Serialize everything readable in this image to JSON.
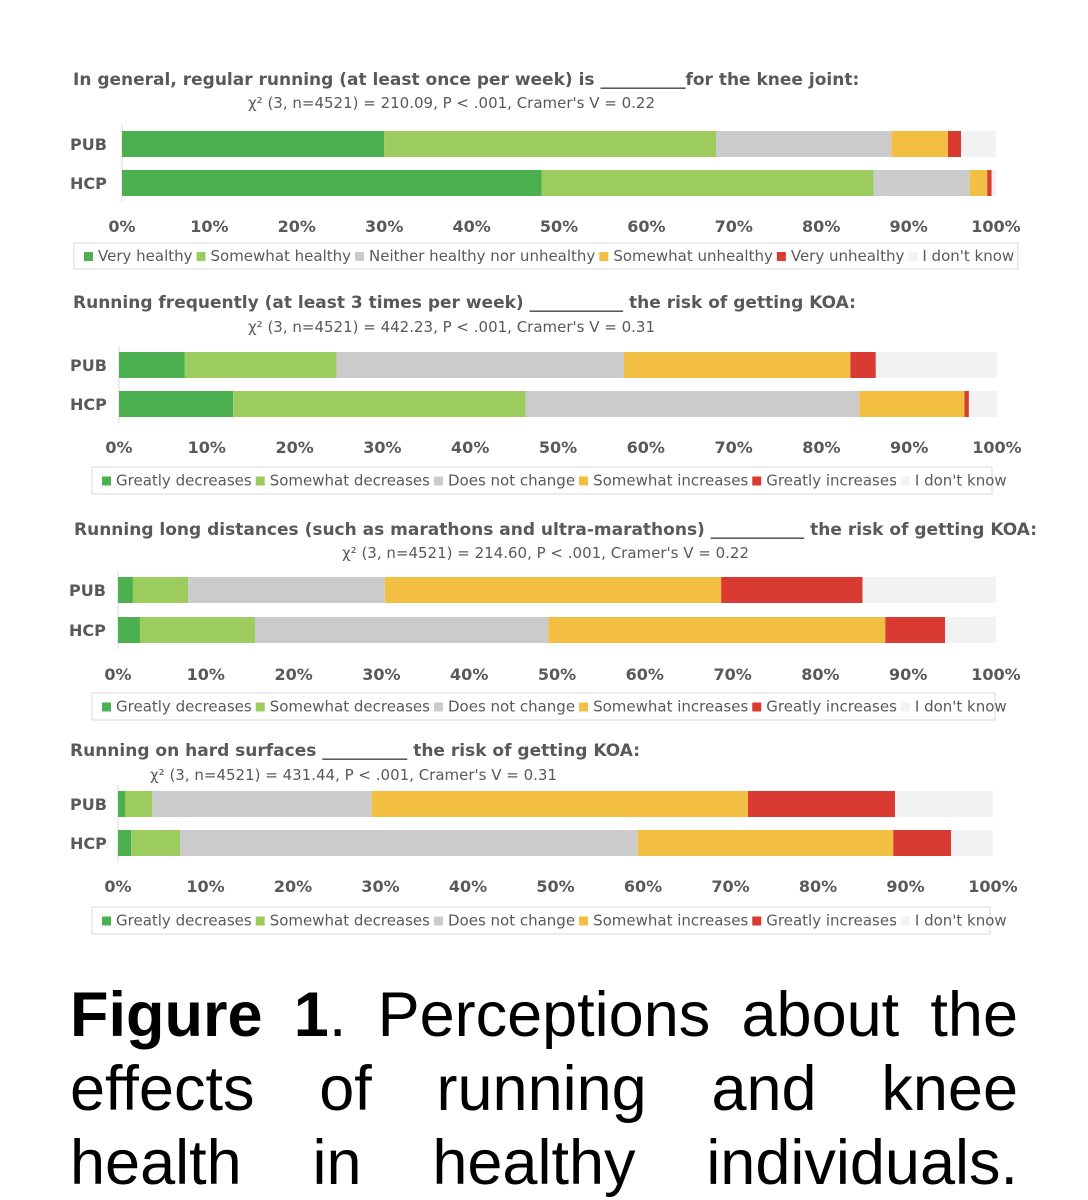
{
  "chart_data": [
    {
      "type": "stacked-bar-horizontal",
      "title": "In general, regular running (at least once per week) is __________for the knee joint:",
      "subtitle": "χ² (3, n=4521) = 210.09, P < .001, Cramer's V = 0.22",
      "categories": [
        "PUB",
        "HCP"
      ],
      "xlim": [
        0,
        100
      ],
      "xticks": [
        "0%",
        "10%",
        "20%",
        "30%",
        "40%",
        "50%",
        "60%",
        "70%",
        "80%",
        "90%",
        "100%"
      ],
      "legend_position": "bottom",
      "series": [
        {
          "name": "Very healthy",
          "color": "#4caf50",
          "values": [
            30,
            48
          ]
        },
        {
          "name": "Somewhat healthy",
          "color": "#9ccb5e",
          "values": [
            38,
            38
          ]
        },
        {
          "name": "Neither healthy nor unhealthy",
          "color": "#cbcbcb",
          "values": [
            20,
            11
          ]
        },
        {
          "name": "Somewhat unhealthy",
          "color": "#f3bf42",
          "values": [
            6.5,
            2
          ]
        },
        {
          "name": "Very unhealthy",
          "color": "#d93a32",
          "values": [
            1.5,
            0.5
          ]
        },
        {
          "name": "I don't know",
          "color": "#f2f2f2",
          "values": [
            4,
            0.5
          ]
        }
      ]
    },
    {
      "type": "stacked-bar-horizontal",
      "title": "Running frequently (at least 3 times per week) ___________ the risk of getting KOA:",
      "subtitle": "χ² (3, n=4521) = 442.23, P < .001, Cramer's V = 0.31",
      "categories": [
        "PUB",
        "HCP"
      ],
      "xlim": [
        0,
        100
      ],
      "xticks": [
        "0%",
        "10%",
        "20%",
        "30%",
        "40%",
        "50%",
        "60%",
        "70%",
        "80%",
        "90%",
        "100%"
      ],
      "legend_position": "bottom",
      "series": [
        {
          "name": "Greatly decreases",
          "color": "#4caf50",
          "values": [
            7.5,
            13
          ]
        },
        {
          "name": "Somewhat decreases",
          "color": "#9ccb5e",
          "values": [
            17.3,
            33.3
          ]
        },
        {
          "name": "Does not change",
          "color": "#cbcbcb",
          "values": [
            32.7,
            38
          ]
        },
        {
          "name": "Somewhat increases",
          "color": "#f3bf42",
          "values": [
            25.8,
            12
          ]
        },
        {
          "name": "Greatly increases",
          "color": "#d93a32",
          "values": [
            2.9,
            0.5
          ]
        },
        {
          "name": "I don't know",
          "color": "#f2f2f2",
          "values": [
            13.8,
            3.2
          ]
        }
      ]
    },
    {
      "type": "stacked-bar-horizontal",
      "title": "Running long distances (such as marathons and ultra-marathons) ___________ the risk of getting KOA:",
      "subtitle": "χ² (3, n=4521) = 214.60, P < .001, Cramer's V = 0.22",
      "categories": [
        "PUB",
        "HCP"
      ],
      "xlim": [
        0,
        100
      ],
      "xticks": [
        "0%",
        "10%",
        "20%",
        "30%",
        "40%",
        "50%",
        "60%",
        "70%",
        "80%",
        "90%",
        "100%"
      ],
      "legend_position": "bottom",
      "series": [
        {
          "name": "Greatly decreases",
          "color": "#4caf50",
          "values": [
            1.7,
            2.5
          ]
        },
        {
          "name": "Somewhat decreases",
          "color": "#9ccb5e",
          "values": [
            6.3,
            13.1
          ]
        },
        {
          "name": "Does not change",
          "color": "#cbcbcb",
          "values": [
            22.4,
            33.4
          ]
        },
        {
          "name": "Somewhat increases",
          "color": "#f3bf42",
          "values": [
            38.3,
            38.4
          ]
        },
        {
          "name": "Greatly increases",
          "color": "#d93a32",
          "values": [
            16.1,
            6.8
          ]
        },
        {
          "name": "I don't know",
          "color": "#f2f2f2",
          "values": [
            15.2,
            5.8
          ]
        }
      ]
    },
    {
      "type": "stacked-bar-horizontal",
      "title": "Running on hard surfaces __________ the risk of getting KOA:",
      "subtitle": "χ² (3, n=4521) = 431.44, P < .001, Cramer's V = 0.31",
      "categories": [
        "PUB",
        "HCP"
      ],
      "xlim": [
        0,
        100
      ],
      "xticks": [
        "0%",
        "10%",
        "20%",
        "30%",
        "40%",
        "50%",
        "60%",
        "70%",
        "80%",
        "90%",
        "100%"
      ],
      "legend_position": "bottom",
      "series": [
        {
          "name": "Greatly decreases",
          "color": "#4caf50",
          "values": [
            0.8,
            1.5
          ]
        },
        {
          "name": "Somewhat decreases",
          "color": "#9ccb5e",
          "values": [
            3.1,
            5.6
          ]
        },
        {
          "name": "Does not change",
          "color": "#cbcbcb",
          "values": [
            25.1,
            52.3
          ]
        },
        {
          "name": "Somewhat increases",
          "color": "#f3bf42",
          "values": [
            43,
            29.2
          ]
        },
        {
          "name": "Greatly increases",
          "color": "#d93a32",
          "values": [
            16.8,
            6.6
          ]
        },
        {
          "name": "I don't know",
          "color": "#f2f2f2",
          "values": [
            11.2,
            4.8
          ]
        }
      ]
    }
  ],
  "caption": {
    "label": "Figure 1",
    "text": ". Perceptions about the effects of running and knee health in healthy individuals."
  }
}
